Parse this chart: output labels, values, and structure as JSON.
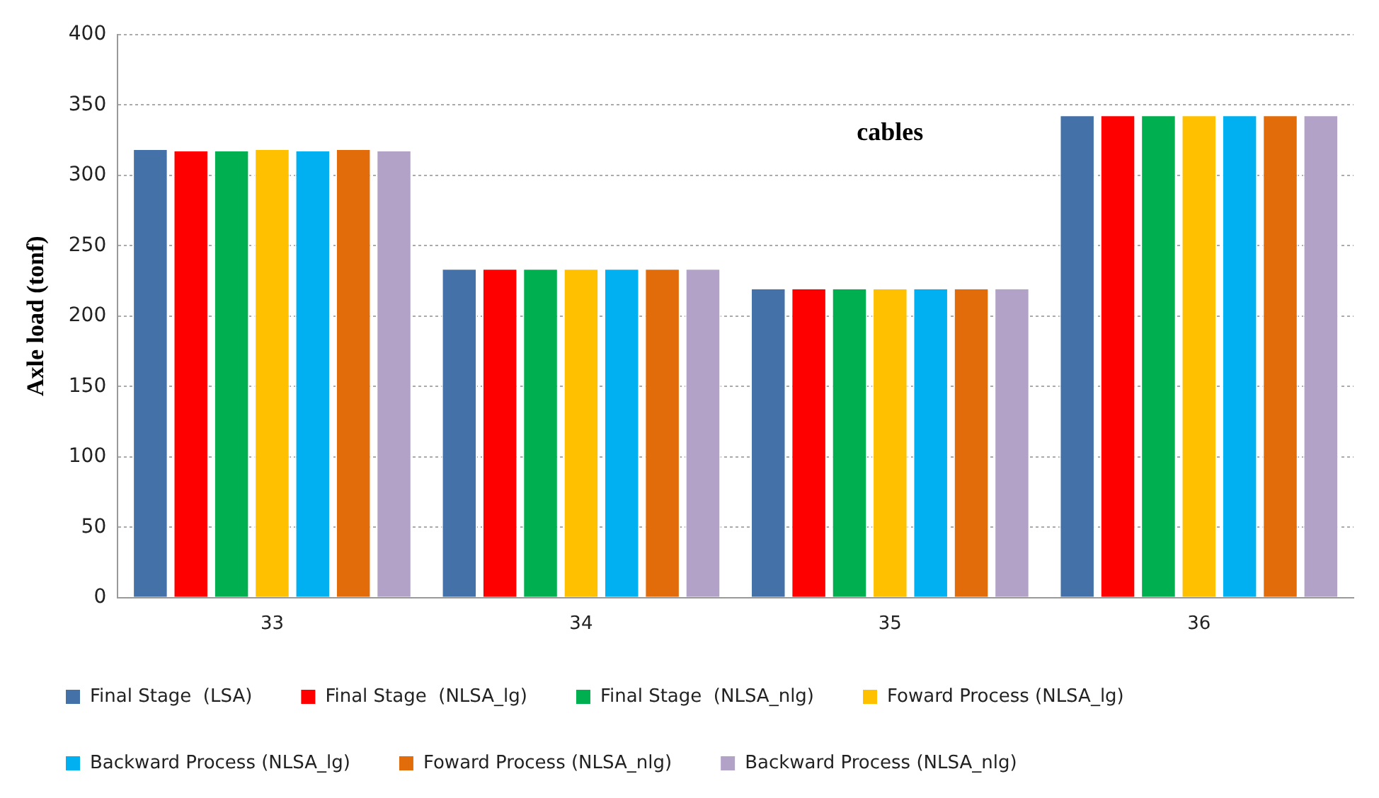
{
  "chart_data": {
    "type": "bar",
    "ylabel": "Axle load (tonf)",
    "categories": [
      "33",
      "34",
      "35",
      "36"
    ],
    "series": [
      {
        "name": "Final Stage  (LSA)",
        "color": "#4472a8",
        "values": [
          319,
          234,
          220,
          343
        ]
      },
      {
        "name": "Final Stage  (NLSA_lg)",
        "color": "#ff0000",
        "values": [
          318,
          234,
          220,
          343
        ]
      },
      {
        "name": "Final Stage  (NLSA_nlg)",
        "color": "#00b050",
        "values": [
          318,
          234,
          220,
          343
        ]
      },
      {
        "name": "Foward Process (NLSA_lg)",
        "color": "#ffc000",
        "values": [
          319,
          234,
          220,
          343
        ]
      },
      {
        "name": "Backward Process (NLSA_lg)",
        "color": "#00b0f0",
        "values": [
          318,
          234,
          220,
          343
        ]
      },
      {
        "name": "Foward Process (NLSA_nlg)",
        "color": "#e36c0a",
        "values": [
          319,
          234,
          220,
          343
        ]
      },
      {
        "name": "Backward Process (NLSA_nlg)",
        "color": "#b2a2c7",
        "values": [
          318,
          234,
          220,
          343
        ]
      }
    ],
    "ylim": [
      0,
      400
    ],
    "yticks": [
      0,
      50,
      100,
      150,
      200,
      250,
      300,
      350,
      400
    ],
    "grid": "y",
    "legend": "bottom",
    "annotations": [
      "cables"
    ]
  }
}
